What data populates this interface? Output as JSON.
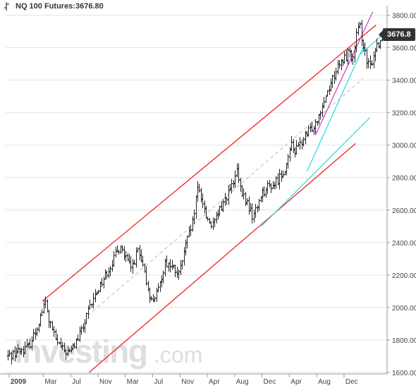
{
  "header": {
    "title": "NQ 100 Futures:3676.80"
  },
  "price_badge": "3676.8",
  "watermark": {
    "brand": "Investing",
    "suffix": ".com"
  },
  "colors": {
    "candle": "#222222",
    "grid": "#e4e4e4",
    "red_channel": "#ee2222",
    "magenta_trend": "#cc44cc",
    "cyan_trend": "#33dddd",
    "dashed_mid": "#bbbbbb",
    "badge": "#333333"
  },
  "chart_data": {
    "type": "ohlc",
    "title": "NQ 100 Futures:3676.80",
    "last_price": 3676.8,
    "y_ticks": [
      1600,
      1800,
      2000,
      2200,
      2400,
      2600,
      2800,
      3000,
      3200,
      3400,
      3600,
      3800
    ],
    "y_tick_labels": [
      "1600.00",
      "1800.00",
      "2000.00",
      "2200.00",
      "2400.00",
      "2600.00",
      "2800.00",
      "3000.00",
      "3200.00",
      "3400.00",
      "3600.00",
      "3800.00"
    ],
    "ylim": [
      1600,
      3850
    ],
    "x_labels": [
      {
        "t": 0.2,
        "label": "2009"
      },
      {
        "t": 5.2,
        "label": "Mar"
      },
      {
        "t": 9.2,
        "label": "Jul"
      },
      {
        "t": 13.2,
        "label": "Nov"
      },
      {
        "t": 17.2,
        "label": "Mar"
      },
      {
        "t": 21.2,
        "label": "Jul"
      },
      {
        "t": 25.2,
        "label": "Nov"
      },
      {
        "t": 29.2,
        "label": "Apr"
      },
      {
        "t": 33.2,
        "label": "Aug"
      },
      {
        "t": 37.2,
        "label": "Dec"
      },
      {
        "t": 41.2,
        "label": "Apr"
      },
      {
        "t": 45.2,
        "label": "Aug"
      },
      {
        "t": 49.2,
        "label": "Dec"
      }
    ],
    "xlim": [
      -0.3,
      55.3
    ],
    "anchors": [
      [
        0,
        1700
      ],
      [
        1,
        1720
      ],
      [
        2,
        1740
      ],
      [
        3,
        1760
      ],
      [
        4,
        1850
      ],
      [
        5,
        1980
      ],
      [
        5.5,
        2030
      ],
      [
        6,
        1920
      ],
      [
        7,
        1800
      ],
      [
        8,
        1740
      ],
      [
        9,
        1720
      ],
      [
        10,
        1790
      ],
      [
        11,
        1880
      ],
      [
        12,
        2000
      ],
      [
        13,
        2100
      ],
      [
        14,
        2180
      ],
      [
        15,
        2260
      ],
      [
        16,
        2340
      ],
      [
        16.5,
        2390
      ],
      [
        17,
        2320
      ],
      [
        18,
        2240
      ],
      [
        19,
        2350
      ],
      [
        20,
        2200
      ],
      [
        21,
        2040
      ],
      [
        22,
        2100
      ],
      [
        23,
        2280
      ],
      [
        24,
        2250
      ],
      [
        25,
        2200
      ],
      [
        26,
        2380
      ],
      [
        27,
        2520
      ],
      [
        27.8,
        2740
      ],
      [
        28.5,
        2650
      ],
      [
        29,
        2560
      ],
      [
        30,
        2500
      ],
      [
        31,
        2600
      ],
      [
        32,
        2690
      ],
      [
        33,
        2760
      ],
      [
        33.5,
        2840
      ],
      [
        34,
        2720
      ],
      [
        35,
        2640
      ],
      [
        35.8,
        2560
      ],
      [
        36.5,
        2620
      ],
      [
        37,
        2700
      ],
      [
        38,
        2740
      ],
      [
        39,
        2760
      ],
      [
        40,
        2820
      ],
      [
        41,
        2900
      ],
      [
        41.5,
        3020
      ],
      [
        42,
        2960
      ],
      [
        43,
        3020
      ],
      [
        44,
        3080
      ],
      [
        45,
        3140
      ],
      [
        46,
        3250
      ],
      [
        47,
        3360
      ],
      [
        48,
        3460
      ],
      [
        49,
        3520
      ],
      [
        50,
        3580
      ],
      [
        50.5,
        3520
      ],
      [
        51,
        3680
      ],
      [
        51.5,
        3720
      ],
      [
        52,
        3620
      ],
      [
        52.5,
        3500
      ],
      [
        53,
        3480
      ],
      [
        53.5,
        3560
      ],
      [
        54,
        3620
      ],
      [
        55,
        3676.8
      ]
    ],
    "trendlines": [
      {
        "name": "red-upper",
        "color": "#ee2222",
        "x1": 5.1,
        "y1": 2040,
        "x2": 53.9,
        "y2": 3740
      },
      {
        "name": "red-lower",
        "color": "#ee2222",
        "x1": 11.9,
        "y1": 1600,
        "x2": 50.9,
        "y2": 3010
      },
      {
        "name": "magenta",
        "color": "#cc44cc",
        "x1": 45.0,
        "y1": 3060,
        "x2": 53.4,
        "y2": 3820
      },
      {
        "name": "cyan-1",
        "color": "#33dddd",
        "x1": 37.1,
        "y1": 2500,
        "x2": 53.0,
        "y2": 3170
      },
      {
        "name": "cyan-2",
        "color": "#33dddd",
        "x1": 43.8,
        "y1": 2840,
        "x2": 52.2,
        "y2": 3620
      },
      {
        "name": "cyan-3",
        "color": "#33dddd",
        "x1": 51.6,
        "y1": 3560,
        "x2": 54.6,
        "y2": 3670
      },
      {
        "name": "grey-dashed",
        "color": "#bbbbbb",
        "dashed": true,
        "x1": 11.7,
        "y1": 1950,
        "x2": 52.0,
        "y2": 3410
      }
    ]
  }
}
